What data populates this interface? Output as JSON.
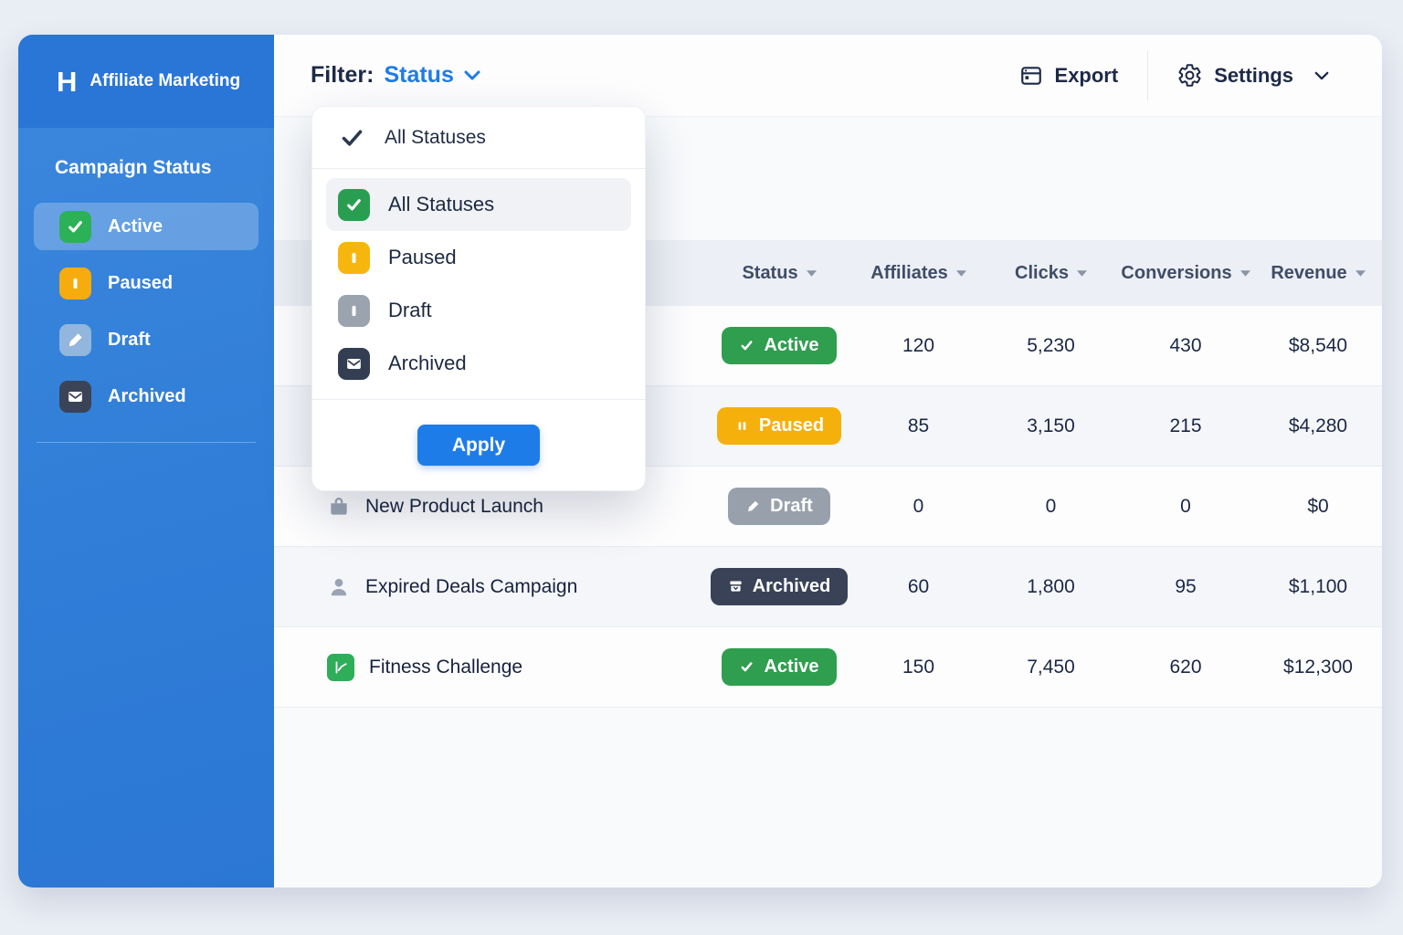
{
  "app": {
    "brand": "Affiliate Marketing",
    "logo_glyph": "H",
    "accent_blue": "#1e7ce8"
  },
  "sidebar": {
    "heading": "Campaign Status",
    "items": [
      {
        "label": "Active",
        "icon": "check",
        "color": "#2cb157",
        "active": true
      },
      {
        "label": "Paused",
        "icon": "pause",
        "color": "#f6ac0c",
        "active": false
      },
      {
        "label": "Draft",
        "icon": "pencil",
        "color": "#92b6dd",
        "active": false
      },
      {
        "label": "Archived",
        "icon": "envelope",
        "color": "#3a4456",
        "active": false
      }
    ]
  },
  "header": {
    "filter_label": "Filter:",
    "filter_value": "Status",
    "export_label": "Export",
    "settings_label": "Settings"
  },
  "dropdown": {
    "selected_label": "All Statuses",
    "options": [
      {
        "label": "All Statuses",
        "icon": "check",
        "color": "#2a9e50",
        "highlighted": true
      },
      {
        "label": "Paused",
        "icon": "pause",
        "color": "#f6b60e",
        "highlighted": false
      },
      {
        "label": "Draft",
        "icon": "pause",
        "color": "#9aa3ae",
        "highlighted": false
      },
      {
        "label": "Archived",
        "icon": "envelope",
        "color": "#333e53",
        "highlighted": false
      }
    ],
    "apply_label": "Apply"
  },
  "table": {
    "columns": [
      "Status",
      "Affiliates",
      "Clicks",
      "Conversions",
      "Revenue"
    ],
    "status_styles": {
      "Active": {
        "color": "#2f9e4f",
        "icon": "check"
      },
      "Paused": {
        "color": "#f6b00c",
        "icon": "pause2"
      },
      "Draft": {
        "color": "#98a1ab",
        "icon": "pencil"
      },
      "Archived": {
        "color": "#394257",
        "icon": "archive"
      }
    },
    "rows": [
      {
        "name": "",
        "icon": "",
        "status": "Active",
        "affiliates": "120",
        "clicks": "5,230",
        "conversions": "430",
        "revenue": "$8,540"
      },
      {
        "name": "",
        "icon": "",
        "status": "Paused",
        "affiliates": "85",
        "clicks": "3,150",
        "conversions": "215",
        "revenue": "$4,280"
      },
      {
        "name": "New Product Launch",
        "icon": "briefcase-icon",
        "status": "Draft",
        "affiliates": "0",
        "clicks": "0",
        "conversions": "0",
        "revenue": "$0"
      },
      {
        "name": "Expired Deals Campaign",
        "icon": "person-icon",
        "status": "Archived",
        "affiliates": "60",
        "clicks": "1,800",
        "conversions": "95",
        "revenue": "$1,100"
      },
      {
        "name": "Fitness Challenge",
        "icon": "chart-icon",
        "status": "Active",
        "affiliates": "150",
        "clicks": "7,450",
        "conversions": "620",
        "revenue": "$12,300"
      }
    ]
  }
}
